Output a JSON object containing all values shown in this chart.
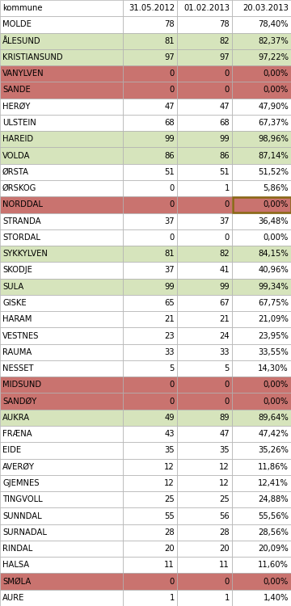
{
  "columns": [
    "kommune",
    "31.05.2012",
    "01.02.2013",
    "20.03.2013"
  ],
  "rows": [
    [
      "MOLDE",
      "78",
      "78",
      "78,40%"
    ],
    [
      "ÅLESUND",
      "81",
      "82",
      "82,37%"
    ],
    [
      "KRISTIANSUND",
      "97",
      "97",
      "97,22%"
    ],
    [
      "VANYLVEN",
      "0",
      "0",
      "0,00%"
    ],
    [
      "SANDE",
      "0",
      "0",
      "0,00%"
    ],
    [
      "HERØY",
      "47",
      "47",
      "47,90%"
    ],
    [
      "ULSTEIN",
      "68",
      "68",
      "67,37%"
    ],
    [
      "HAREID",
      "99",
      "99",
      "98,96%"
    ],
    [
      "VOLDA",
      "86",
      "86",
      "87,14%"
    ],
    [
      "ØRSTA",
      "51",
      "51",
      "51,52%"
    ],
    [
      "ØRSKOG",
      "0",
      "1",
      "5,86%"
    ],
    [
      "NORDDAL",
      "0",
      "0",
      "0,00%"
    ],
    [
      "STRANDA",
      "37",
      "37",
      "36,48%"
    ],
    [
      "STORDAL",
      "0",
      "0",
      "0,00%"
    ],
    [
      "SYKKYLVEN",
      "81",
      "82",
      "84,15%"
    ],
    [
      "SKODJE",
      "37",
      "41",
      "40,96%"
    ],
    [
      "SULA",
      "99",
      "99",
      "99,34%"
    ],
    [
      "GISKE",
      "65",
      "67",
      "67,75%"
    ],
    [
      "HARAM",
      "21",
      "21",
      "21,09%"
    ],
    [
      "VESTNES",
      "23",
      "24",
      "23,95%"
    ],
    [
      "RAUMA",
      "33",
      "33",
      "33,55%"
    ],
    [
      "NESSET",
      "5",
      "5",
      "14,30%"
    ],
    [
      "MIDSUND",
      "0",
      "0",
      "0,00%"
    ],
    [
      "SANDØY",
      "0",
      "0",
      "0,00%"
    ],
    [
      "AUKRA",
      "49",
      "89",
      "89,64%"
    ],
    [
      "FRÆNA",
      "43",
      "47",
      "47,42%"
    ],
    [
      "EIDE",
      "35",
      "35",
      "35,26%"
    ],
    [
      "AVERØY",
      "12",
      "12",
      "11,86%"
    ],
    [
      "GJEMNES",
      "12",
      "12",
      "12,41%"
    ],
    [
      "TINGVOLL",
      "25",
      "25",
      "24,88%"
    ],
    [
      "SUNNDAL",
      "55",
      "56",
      "55,56%"
    ],
    [
      "SURNADAL",
      "28",
      "28",
      "28,56%"
    ],
    [
      "RINDAL",
      "20",
      "20",
      "20,09%"
    ],
    [
      "HALSA",
      "11",
      "11",
      "11,60%"
    ],
    [
      "SMØLA",
      "0",
      "0",
      "0,00%"
    ],
    [
      "AURE",
      "1",
      "1",
      "1,40%"
    ]
  ],
  "row_colors": {
    "MOLDE": "#ffffff",
    "ÅLESUND": "#d6e4bc",
    "KRISTIANSUND": "#d6e4bc",
    "VANYLVEN": "#c9736f",
    "SANDE": "#c9736f",
    "HERØY": "#ffffff",
    "ULSTEIN": "#ffffff",
    "HAREID": "#d6e4bc",
    "VOLDA": "#d6e4bc",
    "ØRSTA": "#ffffff",
    "ØRSKOG": "#ffffff",
    "NORDDAL": "#c9736f",
    "STRANDA": "#ffffff",
    "STORDAL": "#ffffff",
    "SYKKYLVEN": "#d6e4bc",
    "SKODJE": "#ffffff",
    "SULA": "#d6e4bc",
    "GISKE": "#ffffff",
    "HARAM": "#ffffff",
    "VESTNES": "#ffffff",
    "RAUMA": "#ffffff",
    "NESSET": "#ffffff",
    "MIDSUND": "#c9736f",
    "SANDØY": "#c9736f",
    "AUKRA": "#d6e4bc",
    "FRÆNA": "#ffffff",
    "EIDE": "#ffffff",
    "AVERØY": "#ffffff",
    "GJEMNES": "#ffffff",
    "TINGVOLL": "#ffffff",
    "SUNNDAL": "#ffffff",
    "SURNADAL": "#ffffff",
    "RINDAL": "#ffffff",
    "HALSA": "#ffffff",
    "SMØLA": "#c9736f",
    "AURE": "#ffffff"
  },
  "header_bg": "#ffffff",
  "border_color": "#b0b0b0",
  "font_size": 7.2,
  "fig_width": 3.6,
  "fig_height": 7.5,
  "dpi": 100
}
